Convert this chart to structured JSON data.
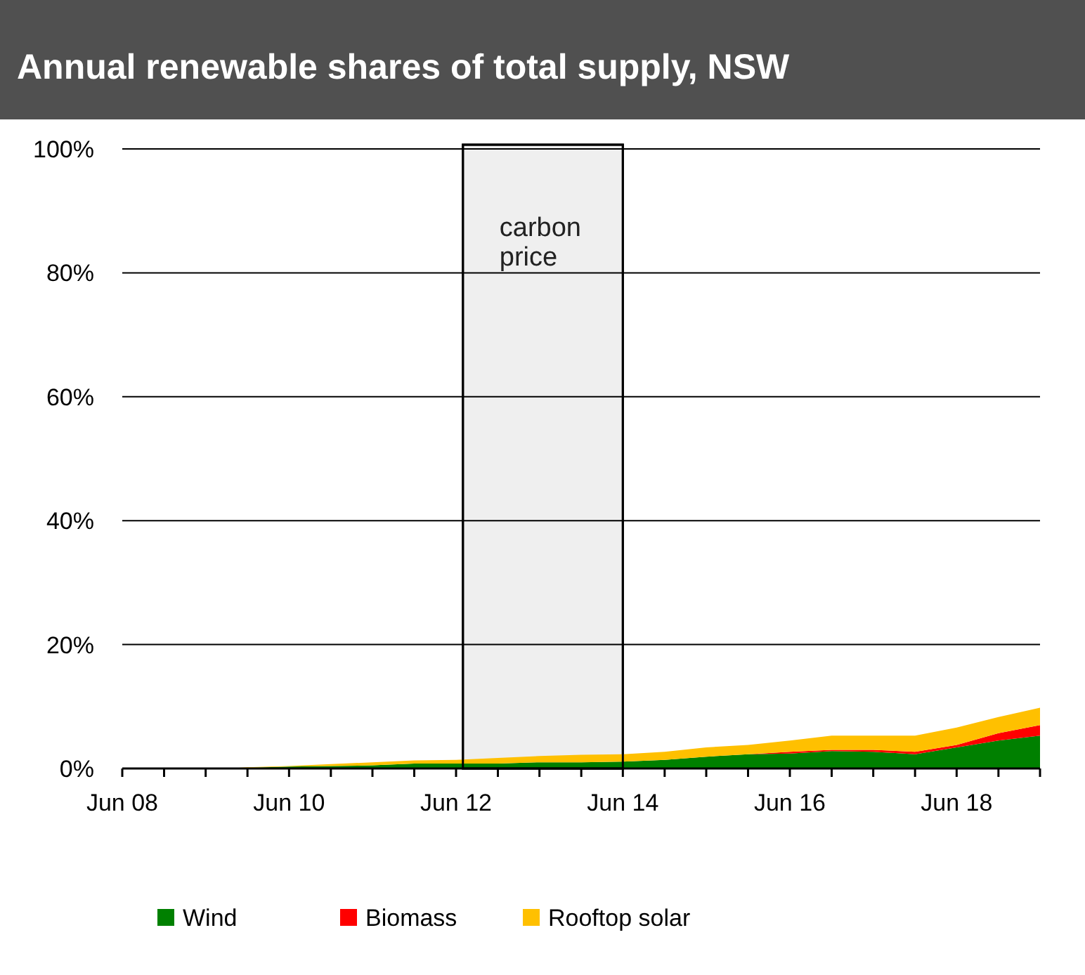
{
  "chart_data": {
    "type": "area",
    "stacked": true,
    "title": "Annual renewable shares of total supply, NSW",
    "x": [
      "2009-09",
      "2009-12",
      "2010-06",
      "2010-12",
      "2011-06",
      "2011-12",
      "2012-06",
      "2012-12",
      "2013-06",
      "2013-12",
      "2014-06",
      "2014-12",
      "2015-06",
      "2015-12",
      "2016-06",
      "2016-12",
      "2017-06",
      "2017-12",
      "2018-06",
      "2018-12",
      "2019-06"
    ],
    "series": [
      {
        "name": "Wind",
        "color": "#008000",
        "values": [
          0,
          0.1,
          0.3,
          0.4,
          0.5,
          0.8,
          0.8,
          0.8,
          1.0,
          1.0,
          1.1,
          1.4,
          1.9,
          2.3,
          2.4,
          2.8,
          2.7,
          2.3,
          3.4,
          4.5,
          5.3
        ]
      },
      {
        "name": "Biomass",
        "color": "#ff0000",
        "values": [
          0,
          0,
          0,
          0,
          0,
          0,
          0,
          0,
          0,
          0,
          0,
          0,
          0,
          0,
          0.3,
          0.2,
          0.3,
          0.4,
          0.4,
          1.2,
          1.7
        ]
      },
      {
        "name": "Rooftop solar",
        "color": "#ffc000",
        "values": [
          0,
          0.1,
          0.1,
          0.3,
          0.5,
          0.5,
          0.6,
          0.9,
          1.0,
          1.2,
          1.2,
          1.3,
          1.5,
          1.5,
          1.8,
          2.3,
          2.3,
          2.6,
          2.8,
          2.6,
          2.8
        ]
      }
    ],
    "xlim": [
      "2008-06",
      "2019-06"
    ],
    "xticks": [
      {
        "value": "2008-06",
        "label": "Jun 08"
      },
      {
        "value": "2008-12",
        "label": null
      },
      {
        "value": "2009-06",
        "label": null
      },
      {
        "value": "2009-12",
        "label": null
      },
      {
        "value": "2010-06",
        "label": "Jun 10"
      },
      {
        "value": "2010-12",
        "label": null
      },
      {
        "value": "2011-06",
        "label": null
      },
      {
        "value": "2011-12",
        "label": null
      },
      {
        "value": "2012-06",
        "label": "Jun 12"
      },
      {
        "value": "2012-12",
        "label": null
      },
      {
        "value": "2013-06",
        "label": null
      },
      {
        "value": "2013-12",
        "label": null
      },
      {
        "value": "2014-06",
        "label": "Jun 14"
      },
      {
        "value": "2014-12",
        "label": null
      },
      {
        "value": "2015-06",
        "label": null
      },
      {
        "value": "2015-12",
        "label": null
      },
      {
        "value": "2016-06",
        "label": "Jun 16"
      },
      {
        "value": "2016-12",
        "label": null
      },
      {
        "value": "2017-06",
        "label": null
      },
      {
        "value": "2017-12",
        "label": null
      },
      {
        "value": "2018-06",
        "label": "Jun 18"
      },
      {
        "value": "2018-12",
        "label": null
      },
      {
        "value": "2019-06",
        "label": null
      }
    ],
    "ylim": [
      0,
      100
    ],
    "yticks": [
      {
        "value": 0,
        "label": "0%"
      },
      {
        "value": 20,
        "label": "20%"
      },
      {
        "value": 40,
        "label": "40%"
      },
      {
        "value": 60,
        "label": "60%"
      },
      {
        "value": 80,
        "label": "80%"
      },
      {
        "value": 100,
        "label": "100%"
      }
    ],
    "grid": "y",
    "bands": [
      {
        "axis": "x",
        "from": "2012-07",
        "to": "2014-06",
        "label": "carbon price",
        "color": "#efefef"
      }
    ],
    "legend": "bottom"
  }
}
